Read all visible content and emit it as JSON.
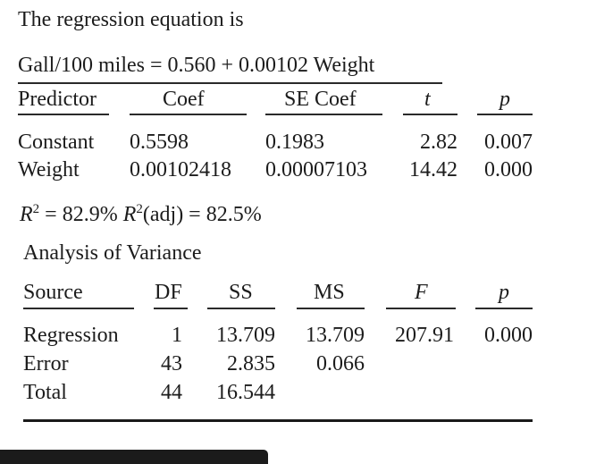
{
  "heading": "The regression equation is",
  "equation": "Gall/100 miles = 0.560 + 0.00102 Weight",
  "coef_table": {
    "headers": [
      "Predictor",
      "Coef",
      "SE Coef",
      "t",
      "p"
    ],
    "rows": [
      {
        "predictor": "Constant",
        "coef": "0.5598",
        "se_coef": "0.1983",
        "t": "2.82",
        "p": "0.007"
      },
      {
        "predictor": "Weight",
        "coef": "0.00102418",
        "se_coef": "0.00007103",
        "t": "14.42",
        "p": "0.000"
      }
    ]
  },
  "r_squared": {
    "r2_symbol": "R",
    "r2_exp": "2",
    "r2_text": " = 82.9% ",
    "r2adj_symbol": "R",
    "r2adj_exp": "2",
    "r2adj_text": "(adj) = 82.5%"
  },
  "anova": {
    "title": "Analysis of Variance",
    "headers": [
      "Source",
      "DF",
      "SS",
      "MS",
      "F",
      "p"
    ],
    "rows": [
      {
        "source": "Regression",
        "df": "1",
        "ss": "13.709",
        "ms": "13.709",
        "f": "207.91",
        "p": "0.000"
      },
      {
        "source": "Error",
        "df": "43",
        "ss": "2.835",
        "ms": "0.066",
        "f": "",
        "p": ""
      },
      {
        "source": "Total",
        "df": "44",
        "ss": "16.544",
        "ms": "",
        "f": "",
        "p": ""
      }
    ]
  }
}
